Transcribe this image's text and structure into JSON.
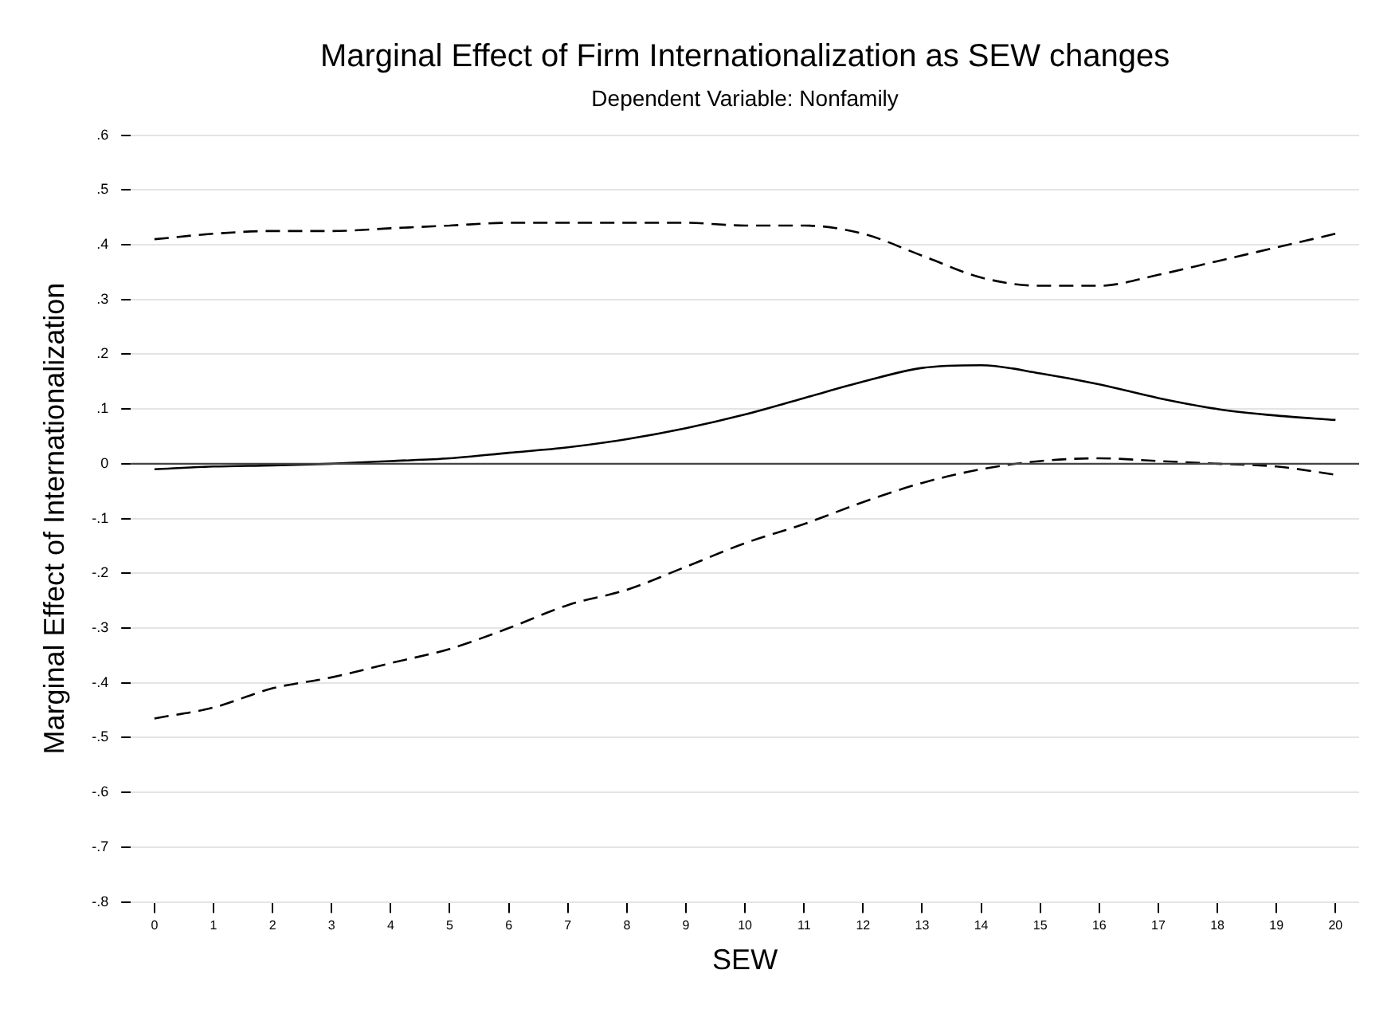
{
  "chart_data": {
    "type": "line",
    "title": "Marginal Effect of Firm Internationalization as SEW changes",
    "subtitle": "Dependent Variable: Nonfamily",
    "xlabel": "SEW",
    "ylabel": "Marginal Effect of Internationalization",
    "x": [
      0,
      1,
      2,
      3,
      4,
      5,
      6,
      7,
      8,
      9,
      10,
      11,
      12,
      13,
      14,
      15,
      16,
      17,
      18,
      19,
      20
    ],
    "series": [
      {
        "color": "#000000",
        "line_style": "dashed",
        "values": [
          0.41,
          0.42,
          0.425,
          0.425,
          0.43,
          0.435,
          0.44,
          0.44,
          0.44,
          0.44,
          0.435,
          0.435,
          0.42,
          0.38,
          0.34,
          0.325,
          0.325,
          0.345,
          0.37,
          0.395,
          0.42
        ]
      },
      {
        "color": "#000000",
        "line_style": "solid",
        "values": [
          -0.01,
          -0.005,
          -0.003,
          0,
          0.005,
          0.01,
          0.02,
          0.03,
          0.045,
          0.065,
          0.09,
          0.12,
          0.15,
          0.175,
          0.18,
          0.165,
          0.145,
          0.12,
          0.1,
          0.088,
          0.08
        ]
      },
      {
        "color": "#000000",
        "line_style": "dashed",
        "values": [
          -0.465,
          -0.445,
          -0.41,
          -0.39,
          -0.364,
          -0.338,
          -0.3,
          -0.258,
          -0.23,
          -0.188,
          -0.145,
          -0.11,
          -0.07,
          -0.035,
          -0.01,
          0.005,
          0.01,
          0.005,
          0,
          -0.005,
          -0.02
        ]
      }
    ],
    "xlim": [
      -0.4,
      20.4
    ],
    "xticks": [
      0,
      1,
      2,
      3,
      4,
      5,
      6,
      7,
      8,
      9,
      10,
      11,
      12,
      13,
      14,
      15,
      16,
      17,
      18,
      19,
      20
    ],
    "ylim": [
      -0.8,
      0.6
    ],
    "yticks": [
      {
        "value": 0.6,
        "label": ".6"
      },
      {
        "value": 0.5,
        "label": ".5"
      },
      {
        "value": 0.4,
        "label": ".4"
      },
      {
        "value": 0.3,
        "label": ".3"
      },
      {
        "value": 0.2,
        "label": ".2"
      },
      {
        "value": 0.1,
        "label": ".1"
      },
      0,
      {
        "value": -0.1,
        "label": "-.1"
      },
      {
        "value": -0.2,
        "label": "-.2"
      },
      {
        "value": -0.3,
        "label": "-.3"
      },
      {
        "value": -0.4,
        "label": "-.4"
      },
      {
        "value": -0.5,
        "label": "-.5"
      },
      {
        "value": -0.6,
        "label": "-.6"
      },
      {
        "value": -0.7,
        "label": "-.7"
      },
      {
        "value": -0.8,
        "label": "-.8"
      }
    ],
    "ref_lines": [
      {
        "axis": "y",
        "value": 0,
        "color": "#444444"
      }
    ],
    "grid": "y",
    "legend": false,
    "marker": "none"
  }
}
